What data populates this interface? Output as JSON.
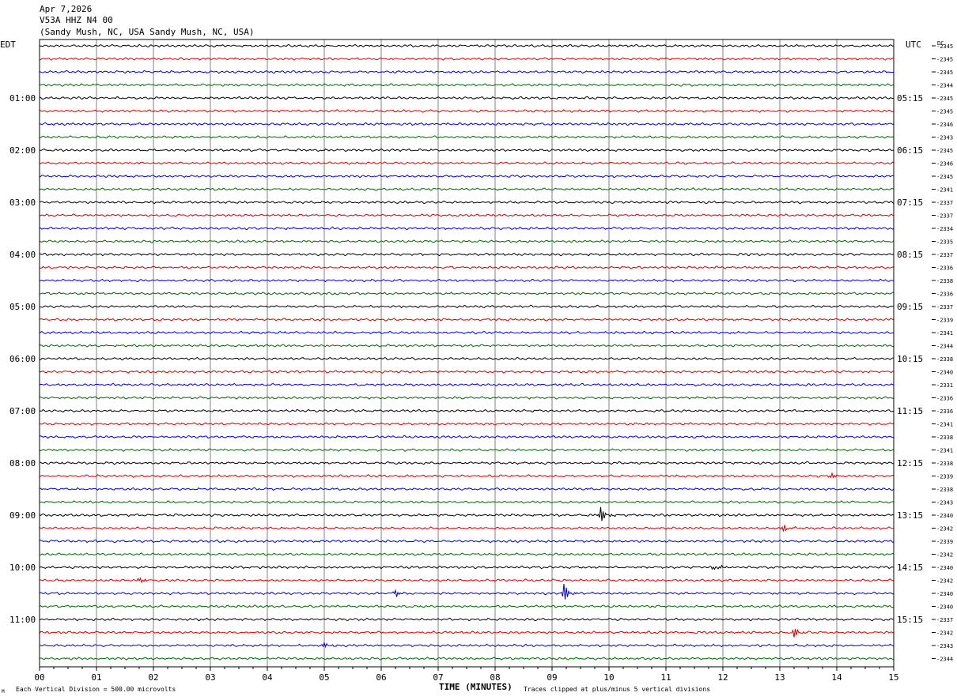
{
  "header": {
    "date": "Apr 7,2026",
    "station": "V53A HHZ N4 00",
    "location": "(Sandy Mush, NC, USA Sandy Mush, NC, USA)"
  },
  "left_zone": "EDT",
  "right_zone": "UTC",
  "dc_header": "DC",
  "footer": {
    "scale_note": "Each Vertical Division = 500.00 microvolts",
    "clip_note": "Traces clipped at plus/minus 5 vertical divisions",
    "corner_mark": "M"
  },
  "colors": {
    "trace_cycle": [
      "#000000",
      "#cc0000",
      "#0000cc",
      "#006600"
    ],
    "grid": "#808080",
    "frame": "#000000"
  },
  "chart_data": {
    "type": "line",
    "xlabel": "TIME (MINUTES)",
    "xlim": [
      0,
      15
    ],
    "x_ticks": [
      "00",
      "01",
      "02",
      "03",
      "04",
      "05",
      "06",
      "07",
      "08",
      "09",
      "10",
      "11",
      "12",
      "13",
      "14",
      "15"
    ],
    "left_time_labels": [
      "01:00",
      "02:00",
      "03:00",
      "04:00",
      "05:00",
      "06:00",
      "07:00",
      "08:00",
      "09:00",
      "10:00",
      "11:00"
    ],
    "right_time_labels": [
      "05:15",
      "06:15",
      "07:15",
      "08:15",
      "09:15",
      "10:15",
      "11:15",
      "12:15",
      "13:15",
      "14:15",
      "15:15"
    ],
    "dc_offsets": [
      2345,
      2345,
      2345,
      2344,
      2345,
      2345,
      2346,
      2343,
      2345,
      2346,
      2345,
      2341,
      2337,
      2337,
      2334,
      2335,
      2337,
      2336,
      2338,
      2336,
      2337,
      2339,
      2341,
      2344,
      2338,
      2340,
      2331,
      2336,
      2336,
      2341,
      2338,
      2341,
      2338,
      2339,
      2338,
      2343,
      2340,
      2342,
      2339,
      2342,
      2340,
      2342,
      2340,
      2340,
      2337,
      2342,
      2343,
      2344
    ],
    "events": [
      {
        "trace": 33,
        "minute": 13.9,
        "amp": 3
      },
      {
        "trace": 36,
        "minute": 9.85,
        "amp": 8
      },
      {
        "trace": 37,
        "minute": 13.05,
        "amp": 4
      },
      {
        "trace": 40,
        "minute": 11.85,
        "amp": 4
      },
      {
        "trace": 41,
        "minute": 1.7,
        "amp": 4
      },
      {
        "trace": 42,
        "minute": 6.25,
        "amp": 3
      },
      {
        "trace": 42,
        "minute": 9.2,
        "amp": 10
      },
      {
        "trace": 45,
        "minute": 13.25,
        "amp": 5
      },
      {
        "trace": 46,
        "minute": 5.0,
        "amp": 3
      }
    ]
  }
}
